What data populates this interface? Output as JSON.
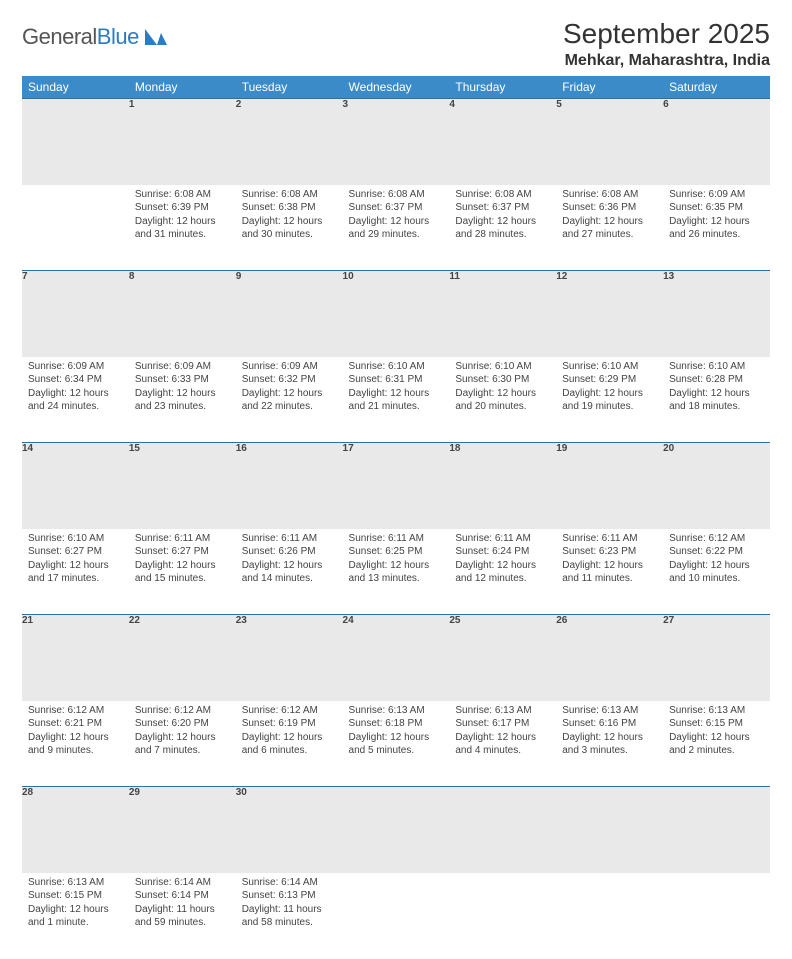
{
  "brand": {
    "part1": "General",
    "part2": "Blue"
  },
  "title": "September 2025",
  "location": "Mehkar, Maharashtra, India",
  "colors": {
    "header_bg": "#3b8bc9",
    "header_text": "#ffffff",
    "daynum_bg": "#e9e9e9",
    "border": "#2f6fa3",
    "brand_blue": "#2f7bbf"
  },
  "weekdays": [
    "Sunday",
    "Monday",
    "Tuesday",
    "Wednesday",
    "Thursday",
    "Friday",
    "Saturday"
  ],
  "start_offset": 1,
  "days": [
    {
      "n": 1,
      "sr": "6:08 AM",
      "ss": "6:39 PM",
      "dl": "12 hours and 31 minutes."
    },
    {
      "n": 2,
      "sr": "6:08 AM",
      "ss": "6:38 PM",
      "dl": "12 hours and 30 minutes."
    },
    {
      "n": 3,
      "sr": "6:08 AM",
      "ss": "6:37 PM",
      "dl": "12 hours and 29 minutes."
    },
    {
      "n": 4,
      "sr": "6:08 AM",
      "ss": "6:37 PM",
      "dl": "12 hours and 28 minutes."
    },
    {
      "n": 5,
      "sr": "6:08 AM",
      "ss": "6:36 PM",
      "dl": "12 hours and 27 minutes."
    },
    {
      "n": 6,
      "sr": "6:09 AM",
      "ss": "6:35 PM",
      "dl": "12 hours and 26 minutes."
    },
    {
      "n": 7,
      "sr": "6:09 AM",
      "ss": "6:34 PM",
      "dl": "12 hours and 24 minutes."
    },
    {
      "n": 8,
      "sr": "6:09 AM",
      "ss": "6:33 PM",
      "dl": "12 hours and 23 minutes."
    },
    {
      "n": 9,
      "sr": "6:09 AM",
      "ss": "6:32 PM",
      "dl": "12 hours and 22 minutes."
    },
    {
      "n": 10,
      "sr": "6:10 AM",
      "ss": "6:31 PM",
      "dl": "12 hours and 21 minutes."
    },
    {
      "n": 11,
      "sr": "6:10 AM",
      "ss": "6:30 PM",
      "dl": "12 hours and 20 minutes."
    },
    {
      "n": 12,
      "sr": "6:10 AM",
      "ss": "6:29 PM",
      "dl": "12 hours and 19 minutes."
    },
    {
      "n": 13,
      "sr": "6:10 AM",
      "ss": "6:28 PM",
      "dl": "12 hours and 18 minutes."
    },
    {
      "n": 14,
      "sr": "6:10 AM",
      "ss": "6:27 PM",
      "dl": "12 hours and 17 minutes."
    },
    {
      "n": 15,
      "sr": "6:11 AM",
      "ss": "6:27 PM",
      "dl": "12 hours and 15 minutes."
    },
    {
      "n": 16,
      "sr": "6:11 AM",
      "ss": "6:26 PM",
      "dl": "12 hours and 14 minutes."
    },
    {
      "n": 17,
      "sr": "6:11 AM",
      "ss": "6:25 PM",
      "dl": "12 hours and 13 minutes."
    },
    {
      "n": 18,
      "sr": "6:11 AM",
      "ss": "6:24 PM",
      "dl": "12 hours and 12 minutes."
    },
    {
      "n": 19,
      "sr": "6:11 AM",
      "ss": "6:23 PM",
      "dl": "12 hours and 11 minutes."
    },
    {
      "n": 20,
      "sr": "6:12 AM",
      "ss": "6:22 PM",
      "dl": "12 hours and 10 minutes."
    },
    {
      "n": 21,
      "sr": "6:12 AM",
      "ss": "6:21 PM",
      "dl": "12 hours and 9 minutes."
    },
    {
      "n": 22,
      "sr": "6:12 AM",
      "ss": "6:20 PM",
      "dl": "12 hours and 7 minutes."
    },
    {
      "n": 23,
      "sr": "6:12 AM",
      "ss": "6:19 PM",
      "dl": "12 hours and 6 minutes."
    },
    {
      "n": 24,
      "sr": "6:13 AM",
      "ss": "6:18 PM",
      "dl": "12 hours and 5 minutes."
    },
    {
      "n": 25,
      "sr": "6:13 AM",
      "ss": "6:17 PM",
      "dl": "12 hours and 4 minutes."
    },
    {
      "n": 26,
      "sr": "6:13 AM",
      "ss": "6:16 PM",
      "dl": "12 hours and 3 minutes."
    },
    {
      "n": 27,
      "sr": "6:13 AM",
      "ss": "6:15 PM",
      "dl": "12 hours and 2 minutes."
    },
    {
      "n": 28,
      "sr": "6:13 AM",
      "ss": "6:15 PM",
      "dl": "12 hours and 1 minute."
    },
    {
      "n": 29,
      "sr": "6:14 AM",
      "ss": "6:14 PM",
      "dl": "11 hours and 59 minutes."
    },
    {
      "n": 30,
      "sr": "6:14 AM",
      "ss": "6:13 PM",
      "dl": "11 hours and 58 minutes."
    }
  ],
  "labels": {
    "sunrise": "Sunrise:",
    "sunset": "Sunset:",
    "daylight": "Daylight:"
  }
}
